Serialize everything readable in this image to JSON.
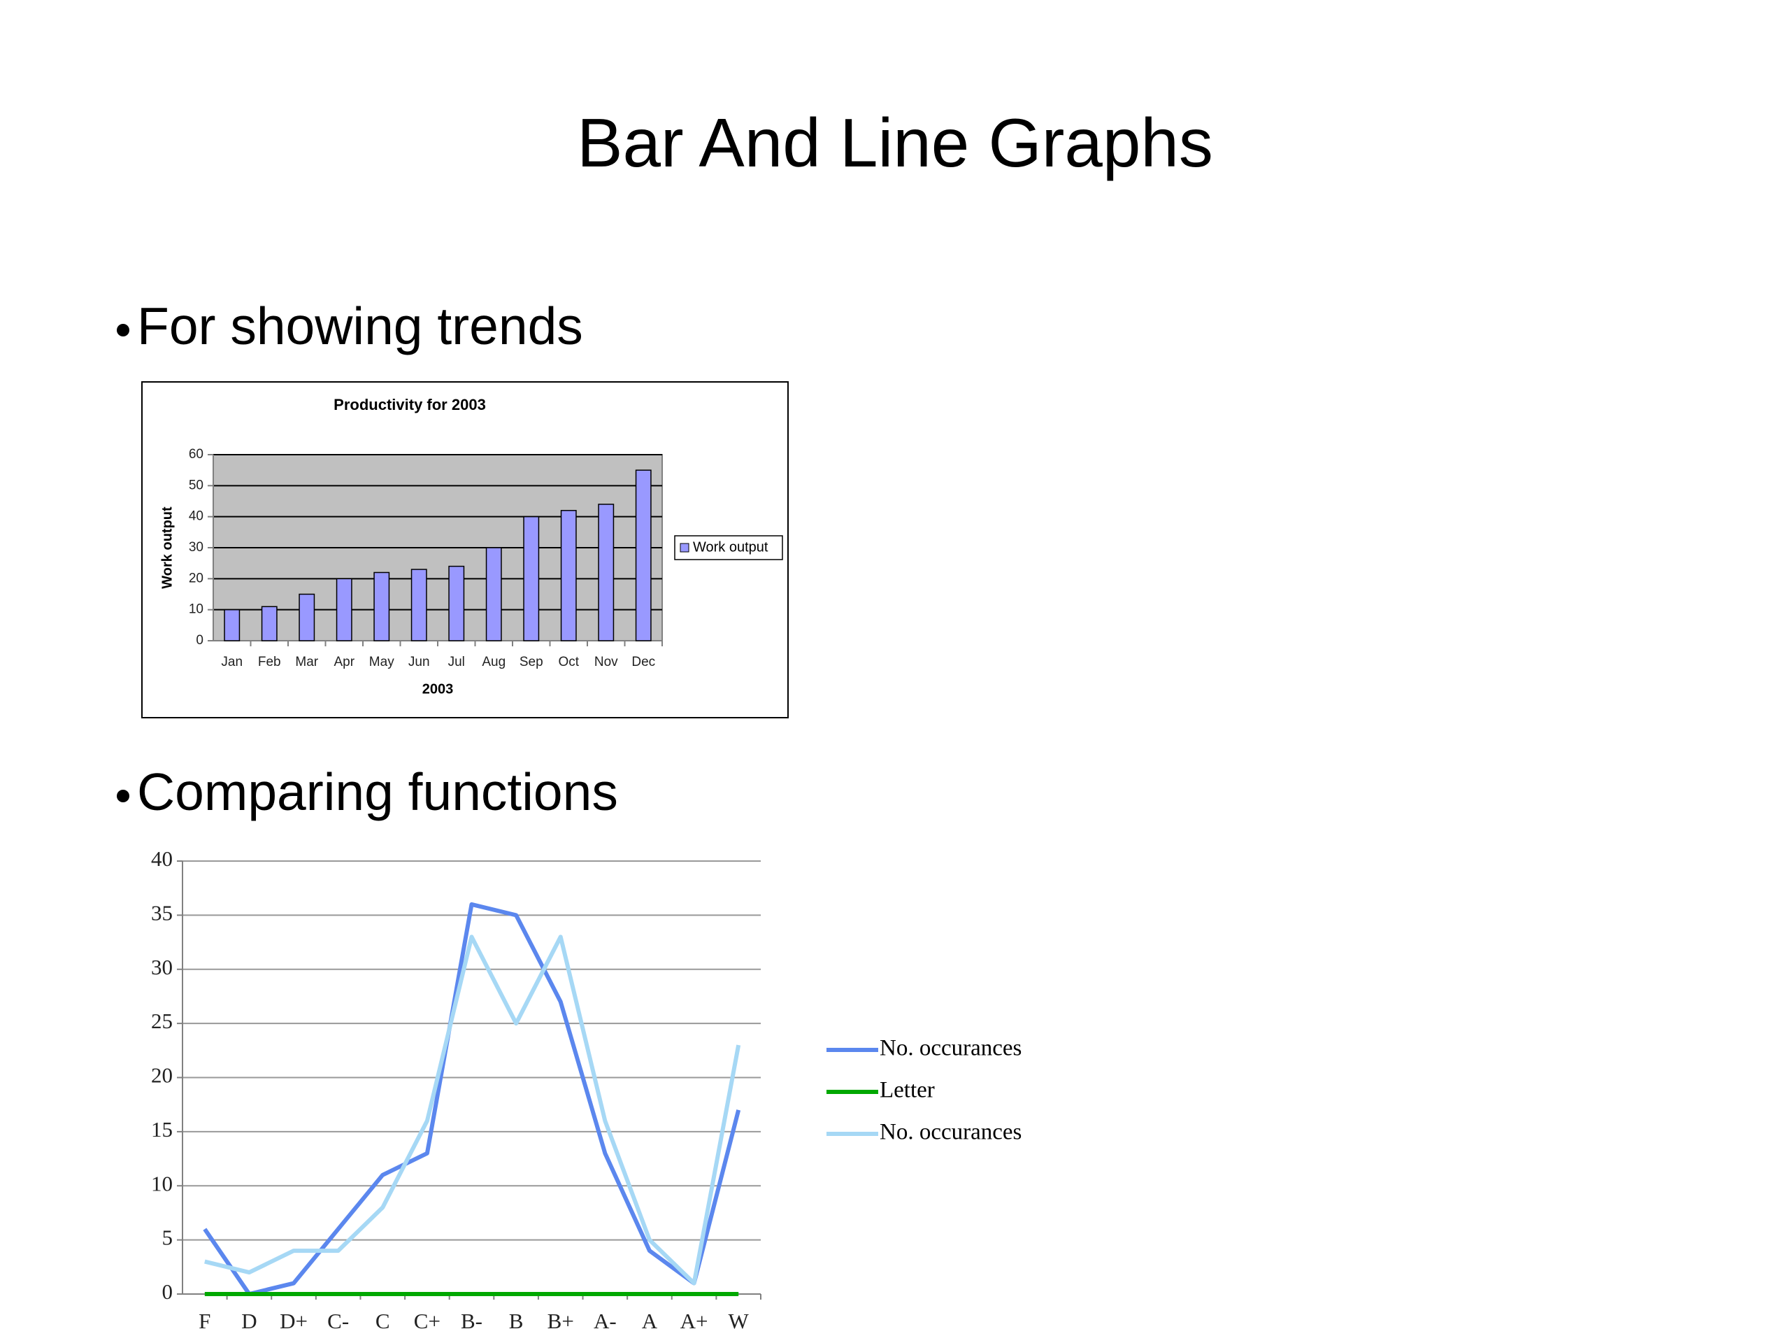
{
  "title": "Bar And Line Graphs",
  "bullets": [
    "For showing trends",
    "Comparing functions"
  ],
  "chart_data": [
    {
      "type": "bar",
      "title": "Productivity for 2003",
      "x_label": "2003",
      "y_label": "Work output",
      "categories": [
        "Jan",
        "Feb",
        "Mar",
        "Apr",
        "May",
        "Jun",
        "Jul",
        "Aug",
        "Sep",
        "Oct",
        "Nov",
        "Dec"
      ],
      "series": [
        {
          "name": "Work output",
          "color": "#9999ff",
          "values": [
            10,
            11,
            15,
            20,
            22,
            23,
            24,
            30,
            40,
            42,
            44,
            55
          ]
        }
      ],
      "ylim": [
        0,
        60
      ],
      "yticks": [
        0,
        10,
        20,
        30,
        40,
        50,
        60
      ],
      "grid": true,
      "legend": "right",
      "plot_background": "#c0c0c0"
    },
    {
      "type": "line",
      "categories": [
        "F",
        "D",
        "D+",
        "C-",
        "C",
        "C+",
        "B-",
        "B",
        "B+",
        "A-",
        "A",
        "A+",
        "W"
      ],
      "series": [
        {
          "name": "No. occurances",
          "color": "#5b87ee",
          "values": [
            6,
            0,
            1,
            6,
            11,
            13,
            36,
            35,
            27,
            13,
            4,
            1,
            17
          ]
        },
        {
          "name": "Letter",
          "color": "#00a800",
          "values": [
            0,
            0,
            0,
            0,
            0,
            0,
            0,
            0,
            0,
            0,
            0,
            0,
            0
          ]
        },
        {
          "name": "No. occurances",
          "color": "#a6d8f5",
          "values": [
            3,
            2,
            4,
            4,
            8,
            16,
            33,
            25,
            33,
            16,
            5,
            1,
            23
          ]
        }
      ],
      "ylim": [
        0,
        40
      ],
      "yticks": [
        0,
        5,
        10,
        15,
        20,
        25,
        30,
        35,
        40
      ],
      "grid": true,
      "legend": "right"
    }
  ]
}
